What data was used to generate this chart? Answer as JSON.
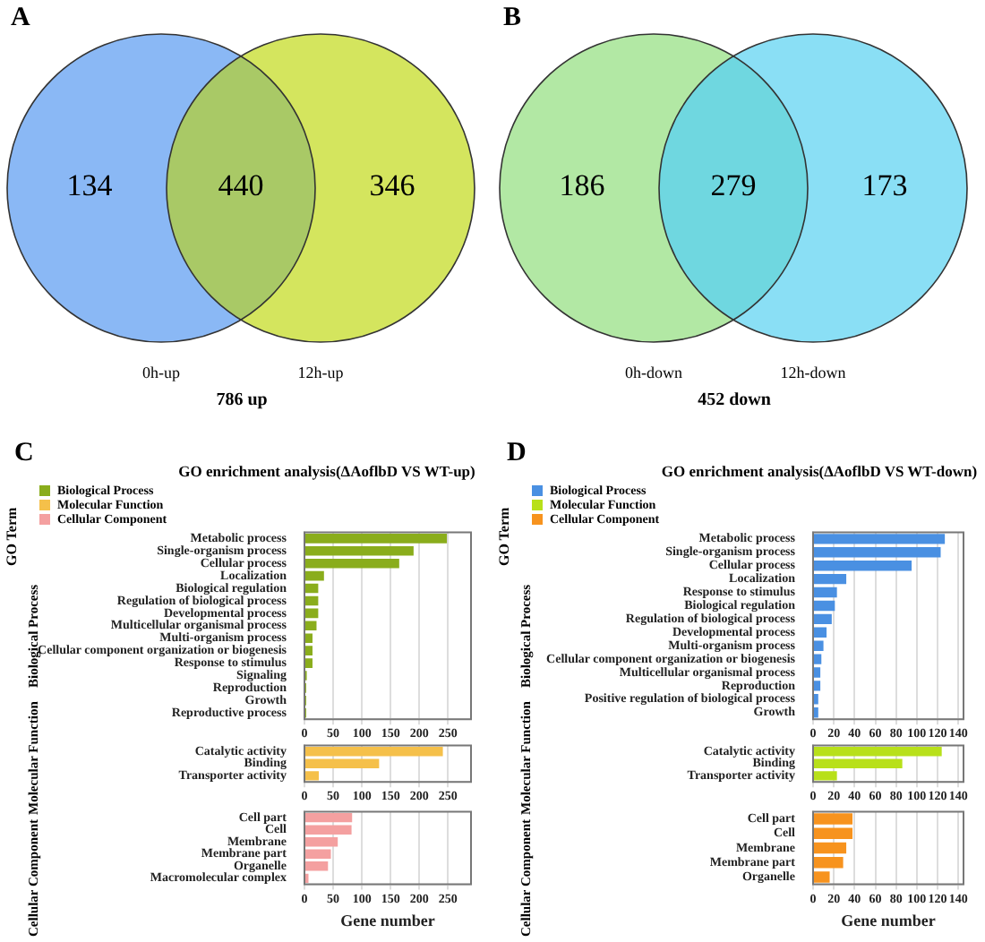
{
  "chart_data": [
    {
      "type": "other",
      "title": "786 up",
      "annotations": [
        "A"
      ],
      "data_labels": true,
      "categories": [
        "0h-up",
        null,
        "12h-up"
      ],
      "values": [
        134,
        440,
        346
      ],
      "colors": [
        "#8ab8f5",
        "#a9c966",
        "#d4e55e"
      ]
    },
    {
      "type": "other",
      "title": "452 down",
      "annotations": [
        "B"
      ],
      "data_labels": true,
      "categories": [
        "0h-down",
        null,
        "12h-down"
      ],
      "values": [
        186,
        279,
        173
      ],
      "colors": [
        "#b2e8a4",
        "#6fd7e0",
        "#8adff5"
      ]
    },
    {
      "type": "bar",
      "orientation": "horizontal",
      "title": "GO enrichment analysis(ΔAoflbD VS WT-up)",
      "annotations": [
        "C",
        "GO Term"
      ],
      "ylabel": "Biological Process",
      "legend": "top left",
      "grid": "x",
      "xlim": [
        0,
        290
      ],
      "xticks": [
        0,
        50,
        100,
        150,
        200,
        250
      ],
      "categories": [
        "Metabolic process",
        "Single-organism process",
        "Cellular process",
        "Localization",
        "Biological regulation",
        "Regulation of biological process",
        "Developmental process",
        "Multicellular organismal process",
        "Multi-organism process",
        "Cellular component organization or biogenesis",
        "Response to stimulus",
        "Signaling",
        "Reproduction",
        "Growth",
        "Reproductive process"
      ],
      "series": [
        {
          "name": "Biological Process",
          "color": "#8aad1c",
          "values": [
            248,
            190,
            165,
            34,
            24,
            24,
            24,
            21,
            14,
            14,
            14,
            4,
            3,
            3,
            3
          ]
        }
      ]
    },
    {
      "type": "bar",
      "orientation": "horizontal",
      "ylabel": "Molecular Function",
      "legend": "top left",
      "grid": "x",
      "xlim": [
        0,
        290
      ],
      "xticks": [
        0,
        50,
        100,
        150,
        200,
        250
      ],
      "categories": [
        "Catalytic activity",
        "Binding",
        "Transporter activity"
      ],
      "series": [
        {
          "name": "Molecular Function",
          "color": "#f5c04a",
          "values": [
            241,
            130,
            25
          ]
        }
      ]
    },
    {
      "type": "bar",
      "orientation": "horizontal",
      "ylabel": "Cellular Component",
      "xlabel": "Gene number",
      "legend": "top left",
      "grid": "x",
      "xlim": [
        0,
        290
      ],
      "xticks": [
        0,
        50,
        100,
        150,
        200,
        250
      ],
      "categories": [
        "Cell part",
        "Cell",
        "Membrane",
        "Membrane part",
        "Organelle",
        "Macromolecular complex"
      ],
      "series": [
        {
          "name": "Cellular Component",
          "color": "#f4a0a0",
          "values": [
            83,
            82,
            58,
            46,
            41,
            7
          ]
        }
      ]
    },
    {
      "type": "bar",
      "orientation": "horizontal",
      "title": "GO enrichment analysis(ΔAoflbD VS WT-down)",
      "annotations": [
        "D",
        "GO Term"
      ],
      "ylabel": "Biological Process",
      "legend": "top left",
      "grid": "x",
      "xlim": [
        0,
        145
      ],
      "xticks": [
        0,
        20,
        40,
        60,
        80,
        100,
        120,
        140
      ],
      "categories": [
        "Metabolic process",
        "Single-organism process",
        "Cellular process",
        "Localization",
        "Response to stimulus",
        "Biological regulation",
        "Regulation of biological process",
        "Developmental process",
        "Multi-organism process",
        "Cellular component organization or biogenesis",
        "Multicellular organismal process",
        "Reproduction",
        "Positive regulation of biological process",
        "Growth"
      ],
      "series": [
        {
          "name": "Biological Process",
          "color": "#4a90e2",
          "values": [
            127,
            123,
            95,
            32,
            23,
            21,
            18,
            13,
            10,
            8,
            7,
            7,
            5,
            5
          ]
        }
      ]
    },
    {
      "type": "bar",
      "orientation": "horizontal",
      "ylabel": "Molecular Function",
      "legend": "top left",
      "grid": "x",
      "xlim": [
        0,
        145
      ],
      "xticks": [
        0,
        20,
        40,
        60,
        80,
        100,
        120,
        140
      ],
      "categories": [
        "Catalytic activity",
        "Binding",
        "Transporter activity"
      ],
      "series": [
        {
          "name": "Molecular Function",
          "color": "#b8e01a",
          "values": [
            124,
            86,
            23
          ]
        }
      ]
    },
    {
      "type": "bar",
      "orientation": "horizontal",
      "ylabel": "Cellular Component",
      "xlabel": "Gene number",
      "legend": "top left",
      "grid": "x",
      "xlim": [
        0,
        145
      ],
      "xticks": [
        0,
        20,
        40,
        60,
        80,
        100,
        120,
        140
      ],
      "categories": [
        "Cell part",
        "Cell",
        "Membrane",
        "Membrane part",
        "Organelle"
      ],
      "series": [
        {
          "name": "Cellular Component",
          "color": "#f7931e",
          "values": [
            38,
            38,
            32,
            29,
            16
          ]
        }
      ]
    }
  ]
}
